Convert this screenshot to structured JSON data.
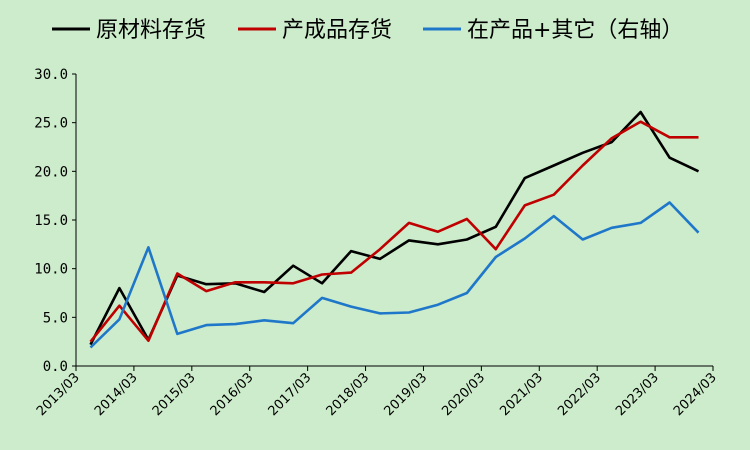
{
  "chart_data": {
    "type": "line",
    "x": [
      "2013/06",
      "2013/12",
      "2014/06",
      "2014/12",
      "2015/06",
      "2015/12",
      "2016/06",
      "2016/12",
      "2017/06",
      "2017/12",
      "2018/06",
      "2018/12",
      "2019/06",
      "2019/12",
      "2020/06",
      "2020/12",
      "2021/06",
      "2021/12",
      "2022/06",
      "2022/12",
      "2023/06",
      "2023/12"
    ],
    "xticks": [
      "2013/03",
      "2014/03",
      "2015/03",
      "2016/03",
      "2017/03",
      "2018/03",
      "2019/03",
      "2020/03",
      "2021/03",
      "2022/03",
      "2023/03",
      "2024/03"
    ],
    "yticks": [
      "0.0",
      "5.0",
      "10.0",
      "15.0",
      "20.0",
      "25.0",
      "30.0"
    ],
    "ylim": [
      0,
      30
    ],
    "legend_position": "top",
    "series": [
      {
        "name": "原材料存货",
        "color": "#000000",
        "values": [
          2.2,
          8.0,
          2.7,
          9.3,
          8.4,
          8.5,
          7.6,
          10.3,
          8.5,
          11.8,
          11.0,
          12.9,
          12.5,
          13.0,
          14.3,
          19.3,
          20.6,
          21.9,
          23.0,
          26.1,
          21.4,
          20.0
        ]
      },
      {
        "name": "产成品存货",
        "color": "#c00000",
        "values": [
          2.5,
          6.2,
          2.6,
          9.5,
          7.7,
          8.6,
          8.6,
          8.5,
          9.4,
          9.6,
          12.0,
          14.7,
          13.8,
          15.1,
          12.0,
          16.5,
          17.6,
          20.6,
          23.4,
          25.1,
          23.5,
          23.5
        ]
      },
      {
        "name": "在产品+其它（右轴）",
        "color": "#1f77c9",
        "values": [
          1.9,
          4.8,
          12.2,
          3.3,
          4.2,
          4.3,
          4.7,
          4.4,
          7.0,
          6.1,
          5.4,
          5.5,
          6.3,
          7.5,
          11.2,
          13.1,
          15.4,
          13.0,
          14.2,
          14.7,
          16.8,
          13.7
        ]
      }
    ]
  }
}
